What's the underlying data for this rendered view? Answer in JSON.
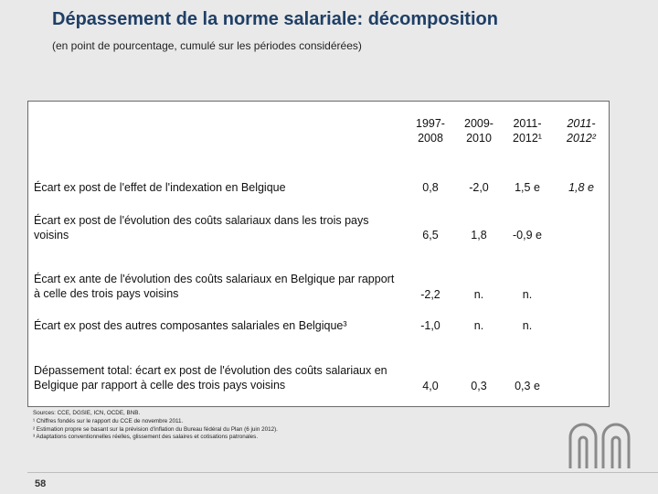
{
  "title": "Dépassement de la norme salariale: décomposition",
  "subtitle": "(en point de pourcentage, cumulé sur les périodes considérées)",
  "table": {
    "columns": [
      {
        "line1": "1997-",
        "line2": "2008"
      },
      {
        "line1": "2009-",
        "line2": "2010"
      },
      {
        "line1": "2011-",
        "line2": "2012¹"
      },
      {
        "line1": "2011-",
        "line2": "2012²"
      }
    ],
    "rows": [
      {
        "label": "Écart ex post de l'effet de l'indexation en Belgique",
        "values": [
          "0,8",
          "-2,0",
          "1,5 e",
          "1,8 e"
        ]
      },
      {
        "label": "Écart ex post de l'évolution des coûts salariaux dans les trois pays voisins",
        "values": [
          "6,5",
          "1,8",
          "-0,9 e",
          ""
        ]
      },
      {
        "label": "Écart ex ante de l'évolution des coûts salariaux en Belgique par rapport à celle des trois pays voisins",
        "values": [
          "-2,2",
          "n.",
          "n.",
          ""
        ]
      },
      {
        "label": "Écart ex post des autres composantes salariales en Belgique³",
        "values": [
          "-1,0",
          "n.",
          "n.",
          ""
        ]
      },
      {
        "label": "Dépassement total: écart ex post de l'évolution des coûts salariaux en Belgique par rapport à celle des trois pays voisins",
        "values": [
          "4,0",
          "0,3",
          "0,3 e",
          ""
        ]
      }
    ]
  },
  "sources": [
    "Sources: CCE, DGSIE, ICN, OCDE, BNB.",
    "¹ Chiffres fondés sur le rapport du CCE de novembre 2011.",
    "² Estimation propre se basant sur la prévision d'inflation du Bureau fédéral du Plan (6 juin 2012).",
    "³ Adaptations conventionnelles réelles, glissement des salaires et cotisations patronales."
  ],
  "page_number": "58",
  "colors": {
    "title": "#1f3f66",
    "background": "#e9e9e9",
    "logo": "#8a8a8a"
  },
  "logo_icon": "nbb-logo-icon"
}
